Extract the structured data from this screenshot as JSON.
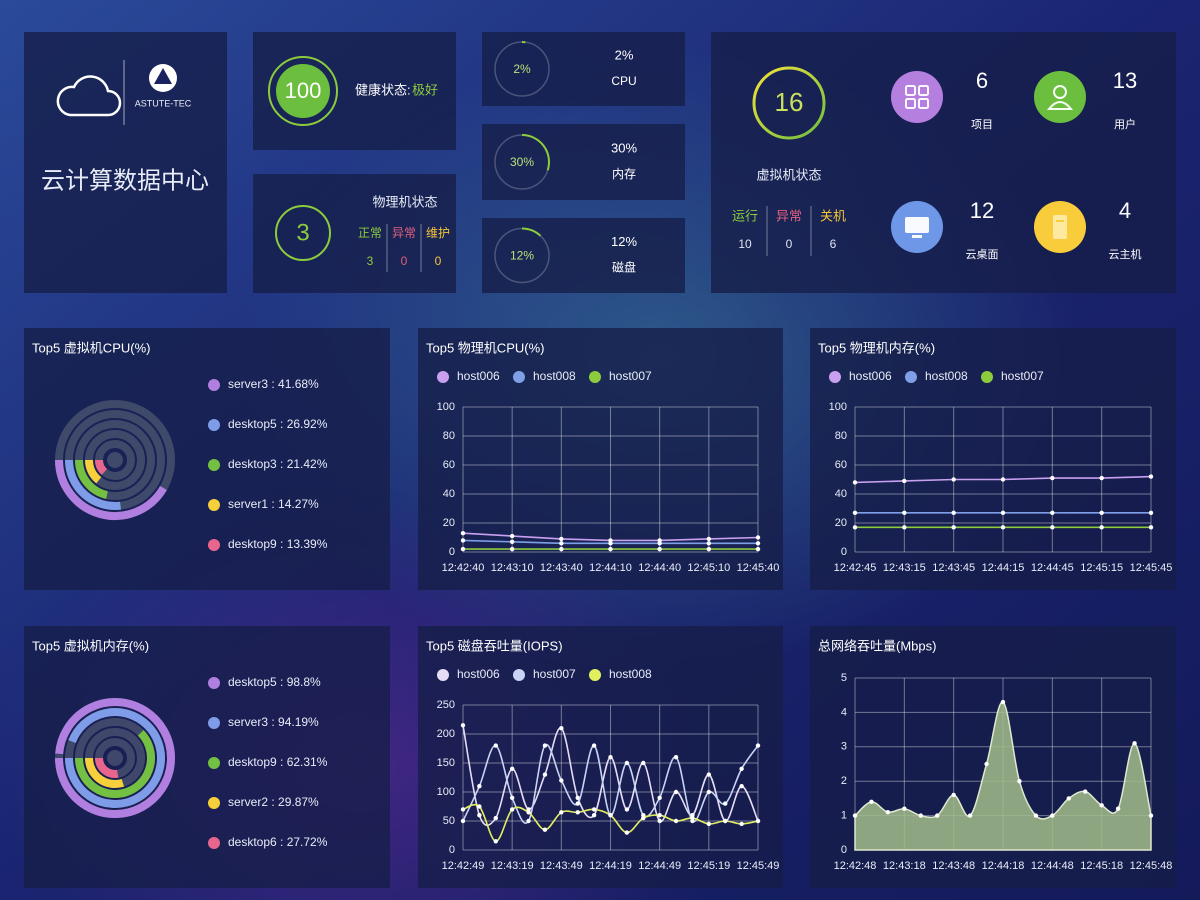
{
  "header": {
    "brand": "ASTUTE-TEC",
    "title": "云计算数据中心"
  },
  "health": {
    "value": 100,
    "label": "健康状态:",
    "status": "极好"
  },
  "physical": {
    "value": 3,
    "title": "物理机状态",
    "items": [
      {
        "label": "正常",
        "value": 3
      },
      {
        "label": "异常",
        "value": 0
      },
      {
        "label": "维护",
        "value": 0
      }
    ]
  },
  "usage": [
    {
      "value": 2,
      "value_label": "2%",
      "label": "CPU"
    },
    {
      "value": 30,
      "value_label": "30%",
      "label": "内存"
    },
    {
      "value": 12,
      "value_label": "12%",
      "label": "磁盘"
    }
  ],
  "vm": {
    "value": 16,
    "title": "虚拟机状态",
    "items": [
      {
        "label": "运行",
        "value": 10
      },
      {
        "label": "异常",
        "value": 0
      },
      {
        "label": "关机",
        "value": 6
      }
    ]
  },
  "counts": [
    {
      "value": 6,
      "label": "项目",
      "color": "#b57fe0"
    },
    {
      "value": 13,
      "label": "用户",
      "color": "#6cbf3e"
    },
    {
      "value": 12,
      "label": "云桌面",
      "color": "#6f97e8"
    },
    {
      "value": 4,
      "label": "云主机",
      "color": "#f8cc3a"
    }
  ],
  "chart_data": [
    {
      "type": "radial_bar",
      "title": "Top5 虚拟机CPU(%)",
      "values": [
        41.68,
        26.92,
        21.42,
        14.27,
        13.39
      ],
      "value_labels": [
        "server3 : 41.68%",
        "desktop5 : 26.92%",
        "desktop3 : 21.42%",
        "server1 : 14.27%",
        "desktop9 : 13.39%"
      ],
      "colors": [
        "#b07fe0",
        "#7f9ce8",
        "#74c043",
        "#f5d03a",
        "#e8668e"
      ]
    },
    {
      "type": "line",
      "title": "Top5 物理机CPU(%)",
      "legend": "top",
      "grid": true,
      "categories": [
        "12:42:40",
        "12:43:10",
        "12:43:40",
        "12:44:10",
        "12:44:40",
        "12:45:10",
        "12:45:40"
      ],
      "series": [
        {
          "name": "host006",
          "color": "#c9a0f0",
          "values": [
            13,
            11,
            9,
            8,
            8,
            9,
            10
          ]
        },
        {
          "name": "host008",
          "color": "#7fa0e8",
          "values": [
            8,
            7,
            6,
            6,
            6,
            6,
            6
          ]
        },
        {
          "name": "host007",
          "color": "#8ccc3c",
          "values": [
            2,
            2,
            2,
            2,
            2,
            2,
            2
          ]
        }
      ],
      "ylim": [
        0,
        100
      ],
      "yticks": [
        0,
        20,
        40,
        60,
        80,
        100
      ]
    },
    {
      "type": "line",
      "title": "Top5 物理机内存(%)",
      "legend": "top",
      "grid": true,
      "categories": [
        "12:42:45",
        "12:43:15",
        "12:43:45",
        "12:44:15",
        "12:44:45",
        "12:45:15",
        "12:45:45"
      ],
      "series": [
        {
          "name": "host006",
          "color": "#c9a0f0",
          "values": [
            48,
            49,
            50,
            50,
            51,
            51,
            52
          ]
        },
        {
          "name": "host008",
          "color": "#7fa0e8",
          "values": [
            27,
            27,
            27,
            27,
            27,
            27,
            27
          ]
        },
        {
          "name": "host007",
          "color": "#8ccc3c",
          "values": [
            17,
            17,
            17,
            17,
            17,
            17,
            17
          ]
        }
      ],
      "ylim": [
        0,
        100
      ],
      "yticks": [
        0,
        20,
        40,
        60,
        80,
        100
      ]
    },
    {
      "type": "radial_bar",
      "title": "Top5 虚拟机内存(%)",
      "values": [
        98.8,
        94.19,
        62.31,
        29.87,
        27.72
      ],
      "value_labels": [
        "desktop5 : 98.8%",
        "server3 : 94.19%",
        "desktop9 : 62.31%",
        "server2 : 29.87%",
        "desktop6 : 27.72%"
      ],
      "colors": [
        "#b07fe0",
        "#7f9ce8",
        "#74c043",
        "#f5d03a",
        "#e8668e"
      ]
    },
    {
      "type": "line",
      "title": "Top5 磁盘吞吐量(IOPS)",
      "legend": "top",
      "grid": true,
      "smooth": true,
      "categories": [
        "12:42:49",
        null,
        null,
        "12:43:19",
        null,
        null,
        "12:43:49",
        null,
        null,
        "12:44:19",
        null,
        null,
        "12:44:49",
        null,
        null,
        "12:45:19",
        null,
        null,
        "12:45:49"
      ],
      "series": [
        {
          "name": "host006",
          "color": "#e6dcf5",
          "values": [
            215,
            60,
            55,
            140,
            70,
            130,
            210,
            90,
            60,
            160,
            70,
            150,
            50,
            100,
            60,
            130,
            50,
            110,
            50
          ]
        },
        {
          "name": "host007",
          "color": "#c8d4f5",
          "values": [
            50,
            110,
            180,
            90,
            50,
            180,
            120,
            80,
            180,
            60,
            150,
            60,
            90,
            160,
            50,
            100,
            80,
            140,
            180
          ]
        },
        {
          "name": "host008",
          "color": "#e2f060",
          "values": [
            70,
            75,
            15,
            70,
            65,
            35,
            65,
            65,
            70,
            60,
            30,
            55,
            60,
            50,
            55,
            45,
            50,
            45,
            50
          ]
        }
      ],
      "ylim": [
        0,
        250
      ],
      "yticks": [
        0,
        50,
        100,
        150,
        200,
        250
      ]
    },
    {
      "type": "area",
      "title": "总网络吞吐量(Mbps)",
      "grid": true,
      "smooth": true,
      "categories": [
        "12:42:48",
        null,
        null,
        "12:43:18",
        null,
        null,
        "12:43:48",
        null,
        null,
        "12:44:18",
        null,
        null,
        "12:44:48",
        null,
        null,
        "12:45:18",
        null,
        null,
        "12:45:48"
      ],
      "series": [
        {
          "name": null,
          "color": "#a3bd8c",
          "values": [
            1,
            1.4,
            1.1,
            1.2,
            1.0,
            1.0,
            1.6,
            1.0,
            2.5,
            4.3,
            2.0,
            1.0,
            1.0,
            1.5,
            1.7,
            1.3,
            1.2,
            3.1,
            1.0
          ]
        }
      ],
      "ylim": [
        0,
        5
      ],
      "yticks": [
        0,
        1,
        2,
        3,
        4,
        5
      ]
    }
  ]
}
